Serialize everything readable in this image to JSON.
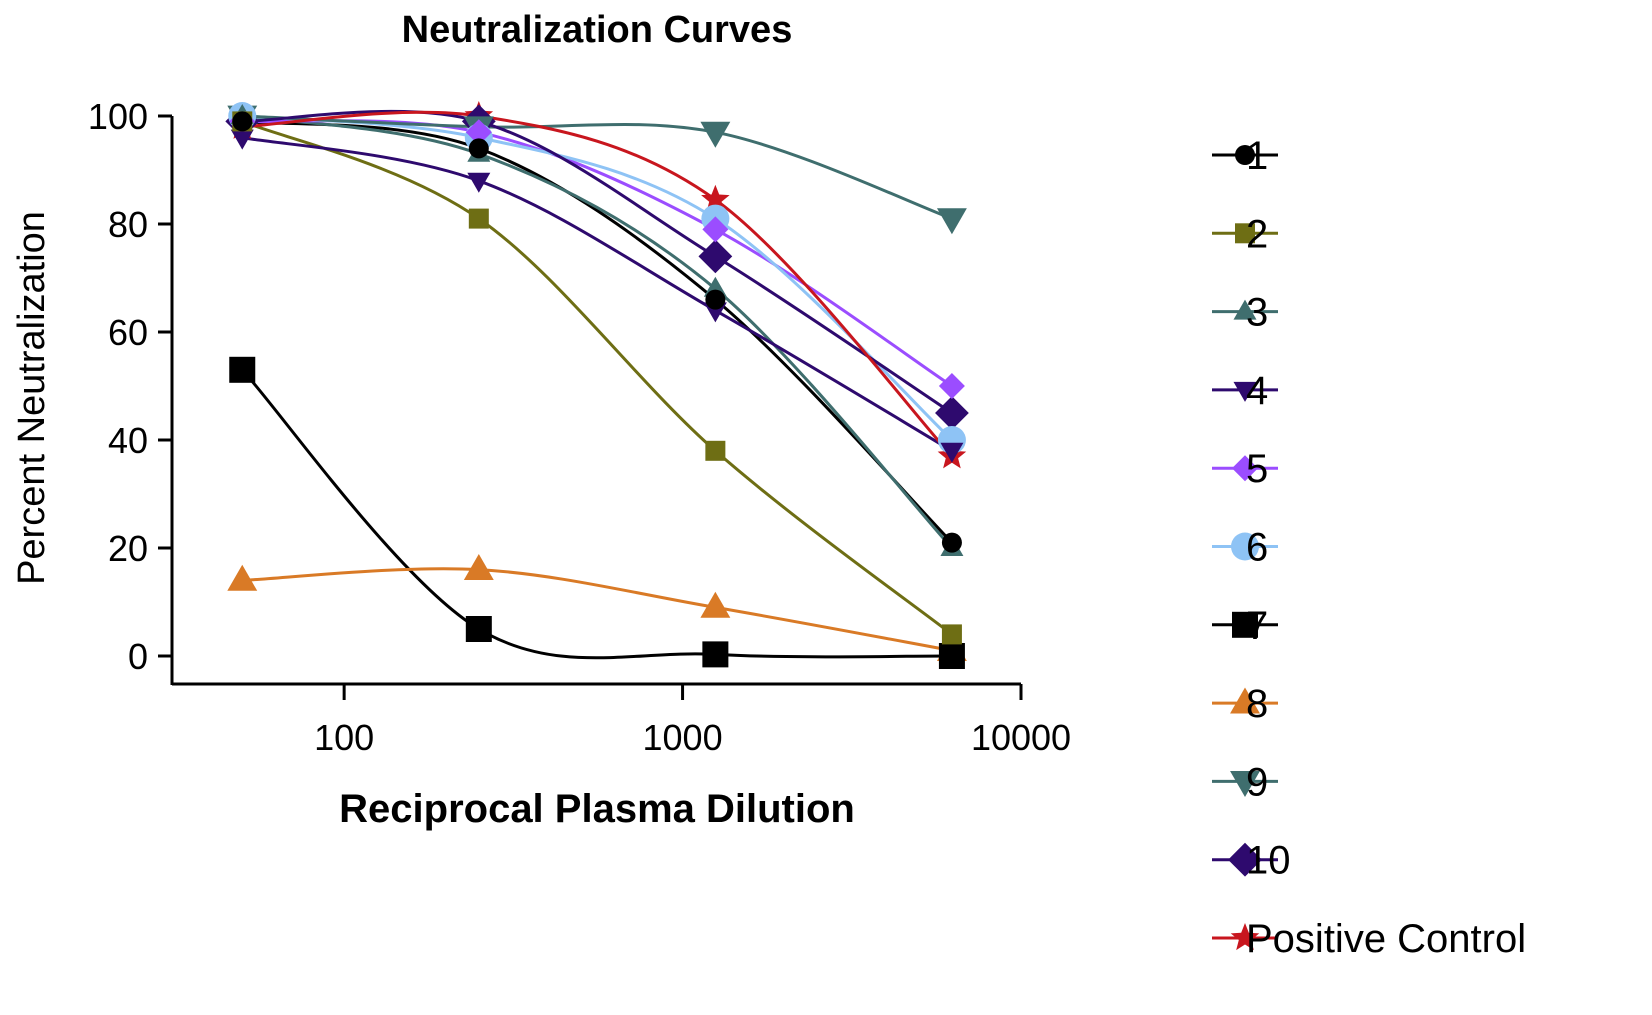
{
  "chart_data": {
    "type": "line",
    "title": "Neutralization Curves",
    "xlabel": "Reciprocal Plasma Dilution",
    "ylabel": "Percent Neutralization",
    "xscale": "log",
    "xlim": [
      31,
      10000
    ],
    "ylim": [
      0,
      100
    ],
    "xticks": [
      100,
      1000,
      10000
    ],
    "xtick_labels": [
      "100",
      "1000",
      "10000"
    ],
    "yticks": [
      0,
      20,
      40,
      60,
      80,
      100
    ],
    "ytick_labels": [
      "0",
      "20",
      "40",
      "60",
      "80",
      "100"
    ],
    "grid": false,
    "legend_placement": "right",
    "x": [
      50,
      250,
      1250,
      6250
    ],
    "series": [
      {
        "name": "1",
        "color": "#000000",
        "marker": "circle",
        "values": [
          99,
          94,
          66,
          21
        ]
      },
      {
        "name": "2",
        "color": "#6e6e14",
        "marker": "square",
        "values": [
          99,
          81,
          38,
          4
        ]
      },
      {
        "name": "3",
        "color": "#3f6e6e",
        "marker": "triangle-up",
        "values": [
          100,
          93,
          68,
          20
        ]
      },
      {
        "name": "4",
        "color": "#2e0a6e",
        "marker": "triangle-down",
        "values": [
          96,
          88,
          64,
          38
        ]
      },
      {
        "name": "5",
        "color": "#9b4dff",
        "marker": "diamond",
        "values": [
          99,
          97,
          79,
          50
        ]
      },
      {
        "name": "6",
        "color": "#8ec3f5",
        "marker": "circle-large",
        "values": [
          100,
          96,
          81,
          40
        ]
      },
      {
        "name": "7",
        "color": "#000000",
        "marker": "square-large",
        "values": [
          53,
          5,
          0.3,
          0
        ]
      },
      {
        "name": "8",
        "color": "#d97a26",
        "marker": "triangle-up-large",
        "values": [
          14,
          16,
          9,
          1
        ]
      },
      {
        "name": "9",
        "color": "#3f6e6e",
        "marker": "triangle-down-large",
        "values": [
          100,
          98,
          97,
          81
        ]
      },
      {
        "name": "10",
        "color": "#2e0a6e",
        "marker": "diamond-large",
        "values": [
          99,
          99,
          74,
          45
        ]
      },
      {
        "name": "Positive Control",
        "color": "#c8161e",
        "marker": "star",
        "values": [
          98,
          100,
          84.5,
          37
        ]
      }
    ]
  }
}
